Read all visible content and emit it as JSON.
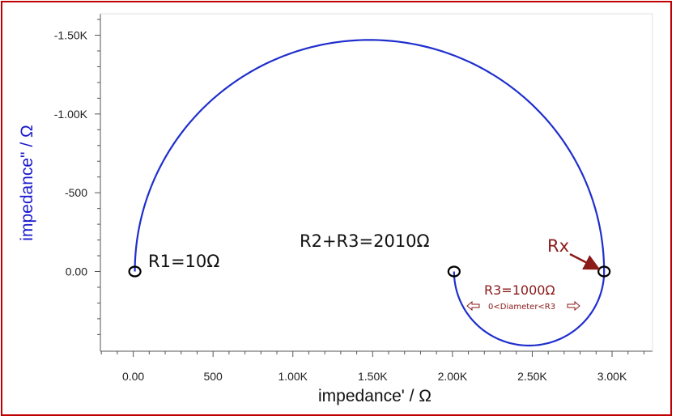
{
  "chart_data": {
    "type": "line",
    "xlabel": "impedance' / Ω",
    "ylabel": "impedance\" / Ω",
    "xlim": [
      -200,
      3250
    ],
    "ylim": [
      -1650,
      450
    ],
    "y_inverted": true,
    "grid": false,
    "x_ticks": [
      {
        "value": 0,
        "label": "0.00"
      },
      {
        "value": 500,
        "label": "500"
      },
      {
        "value": 1000,
        "label": "1.00K"
      },
      {
        "value": 1500,
        "label": "1.50K"
      },
      {
        "value": 2000,
        "label": "2.00K"
      },
      {
        "value": 2500,
        "label": "2.50K"
      },
      {
        "value": 3000,
        "label": "3.00K"
      }
    ],
    "y_ticks": [
      {
        "value": -1500,
        "label": "-1.50K"
      },
      {
        "value": -1000,
        "label": "-1.00K"
      },
      {
        "value": -500,
        "label": "-500"
      },
      {
        "value": 0,
        "label": "0.00"
      }
    ],
    "series": [
      {
        "color": "#1f2fcc",
        "arc": {
          "start": 10,
          "end": 2950,
          "center": 1480,
          "radius": 1470,
          "direction": "up"
        }
      },
      {
        "color": "#1f2fcc",
        "arc": {
          "start": 2010,
          "end": 2950,
          "center": 2480,
          "radius": 470,
          "direction": "down"
        }
      }
    ],
    "markers": [
      {
        "x": 10,
        "y": 0
      },
      {
        "x": 2010,
        "y": 0
      },
      {
        "x": 2950,
        "y": 0
      }
    ],
    "annotations": {
      "r1": "R1=10Ω",
      "r2r3": "R2+R3=2010Ω",
      "rx": "Rx",
      "r3": "R3=1000Ω",
      "diameter_note": "0<Diameter<R3"
    },
    "colors": {
      "curve": "#1f2fcc",
      "marker": "#000000",
      "annotation_dark_red": "#8b1a1a",
      "frame": "#c00000",
      "ylabel": "#1a1acc"
    }
  }
}
